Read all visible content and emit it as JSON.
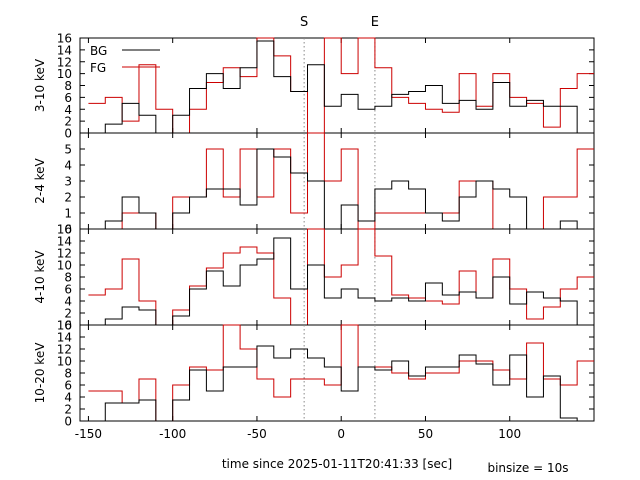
{
  "figure": {
    "xlabel": "time since 2025-01-11T20:41:33 [sec]",
    "binsize_label": "binsize = 10s",
    "markers": [
      {
        "label": "S",
        "x": -22
      },
      {
        "label": "E",
        "x": 20
      }
    ],
    "legend": {
      "bg_label": "BG",
      "fg_label": "FG",
      "placement": "top-left"
    },
    "colors": {
      "bg": "#000000",
      "fg": "#cc0000",
      "marker": "#888888",
      "frame": "#000000"
    }
  },
  "chart_data": [
    {
      "type": "line",
      "step": "post",
      "ylabel": "3-10 keV",
      "xlim": [
        -155,
        150
      ],
      "ylim": [
        0,
        16
      ],
      "yticks": [
        0,
        2,
        4,
        6,
        8,
        10,
        12,
        14,
        16
      ],
      "x_edges": [
        -150,
        -140,
        -130,
        -120,
        -110,
        -100,
        -90,
        -80,
        -70,
        -60,
        -50,
        -40,
        -30,
        -20,
        -10,
        0,
        10,
        20,
        30,
        40,
        50,
        60,
        70,
        80,
        90,
        100,
        110,
        120,
        130,
        140,
        150
      ],
      "series": [
        {
          "name": "BG",
          "values": [
            0,
            1.5,
            5,
            3,
            0,
            3,
            7.5,
            10,
            7.5,
            11,
            15.5,
            9.5,
            7,
            11.5,
            4.5,
            6.5,
            4,
            4.5,
            6.5,
            7,
            8,
            5,
            5.5,
            4,
            8.5,
            4.5,
            5.5,
            4.5,
            4.5,
            0
          ]
        },
        {
          "name": "FG",
          "values": [
            5,
            6,
            2,
            11.5,
            4,
            0,
            4,
            8.5,
            11,
            9.5,
            16,
            13,
            7,
            0,
            16,
            10,
            16,
            11,
            6,
            5,
            4,
            3.5,
            10,
            4.5,
            10,
            6,
            5,
            1,
            7.5,
            10
          ]
        }
      ]
    },
    {
      "type": "line",
      "step": "post",
      "ylabel": "2-4 keV",
      "xlim": [
        -155,
        150
      ],
      "ylim": [
        0,
        6
      ],
      "yticks": [
        0,
        1,
        2,
        3,
        4,
        5
      ],
      "x_edges": [
        -150,
        -140,
        -130,
        -120,
        -110,
        -100,
        -90,
        -80,
        -70,
        -60,
        -50,
        -40,
        -30,
        -20,
        -10,
        0,
        10,
        20,
        30,
        40,
        50,
        60,
        70,
        80,
        90,
        100,
        110,
        120,
        130,
        140,
        150
      ],
      "series": [
        {
          "name": "BG",
          "values": [
            0,
            0.5,
            2,
            1,
            0,
            1,
            2,
            2.5,
            2.5,
            1.5,
            5,
            4.5,
            3.5,
            3,
            0,
            1.5,
            0.5,
            2.5,
            3,
            2.5,
            1,
            0.5,
            2,
            3,
            2.5,
            2,
            0,
            0,
            0.5,
            0
          ]
        },
        {
          "name": "FG",
          "values": [
            0,
            0,
            1,
            1,
            0,
            2,
            2,
            5,
            2,
            5,
            2,
            5,
            1,
            6,
            3,
            5,
            0,
            1,
            1,
            1,
            1,
            1,
            3,
            3,
            0,
            0,
            0,
            2,
            2,
            5
          ]
        }
      ]
    },
    {
      "type": "line",
      "step": "post",
      "ylabel": "4-10 keV",
      "xlim": [
        -155,
        150
      ],
      "ylim": [
        0,
        16
      ],
      "yticks": [
        0,
        2,
        4,
        6,
        8,
        10,
        12,
        14,
        16
      ],
      "x_edges": [
        -150,
        -140,
        -130,
        -120,
        -110,
        -100,
        -90,
        -80,
        -70,
        -60,
        -50,
        -40,
        -30,
        -20,
        -10,
        0,
        10,
        20,
        30,
        40,
        50,
        60,
        70,
        80,
        90,
        100,
        110,
        120,
        130,
        140,
        150
      ],
      "series": [
        {
          "name": "BG",
          "values": [
            0,
            1,
            3,
            2.5,
            0,
            1.5,
            6,
            9,
            6.5,
            10,
            11,
            14.5,
            6,
            10,
            4.5,
            6,
            4.5,
            4,
            4.5,
            4,
            7,
            5,
            5.5,
            4.5,
            8,
            3.5,
            5.5,
            4.5,
            4,
            0
          ]
        },
        {
          "name": "FG",
          "values": [
            5,
            6,
            11,
            4,
            0,
            2.5,
            6.5,
            9.5,
            12,
            13,
            12,
            4.5,
            0,
            16,
            8,
            10,
            16,
            11.5,
            5,
            4.5,
            4,
            3.5,
            9,
            4.5,
            11,
            6,
            1,
            3,
            6,
            8
          ]
        }
      ]
    },
    {
      "type": "line",
      "step": "post",
      "ylabel": "10-20 keV",
      "xlim": [
        -155,
        150
      ],
      "ylim": [
        0,
        16
      ],
      "yticks": [
        0,
        2,
        4,
        6,
        8,
        10,
        12,
        14,
        16
      ],
      "x_edges": [
        -150,
        -140,
        -130,
        -120,
        -110,
        -100,
        -90,
        -80,
        -70,
        -60,
        -50,
        -40,
        -30,
        -20,
        -10,
        0,
        10,
        20,
        30,
        40,
        50,
        60,
        70,
        80,
        90,
        100,
        110,
        120,
        130,
        140,
        150
      ],
      "series": [
        {
          "name": "BG",
          "values": [
            0,
            3,
            3,
            3.5,
            0,
            3.5,
            8.5,
            5,
            9,
            9,
            12.5,
            10.5,
            12,
            10.5,
            9,
            5,
            9,
            8.5,
            10,
            7.5,
            9,
            9,
            11,
            9.5,
            6,
            11,
            4,
            7.5,
            0.5,
            0
          ]
        },
        {
          "name": "FG",
          "values": [
            5,
            5,
            3,
            7,
            0,
            6,
            9,
            8.5,
            16,
            12,
            7,
            4,
            7,
            7,
            6,
            16,
            9,
            9,
            8,
            7,
            8,
            8,
            10,
            10,
            8.5,
            7,
            13,
            7,
            6,
            10
          ]
        }
      ]
    }
  ]
}
